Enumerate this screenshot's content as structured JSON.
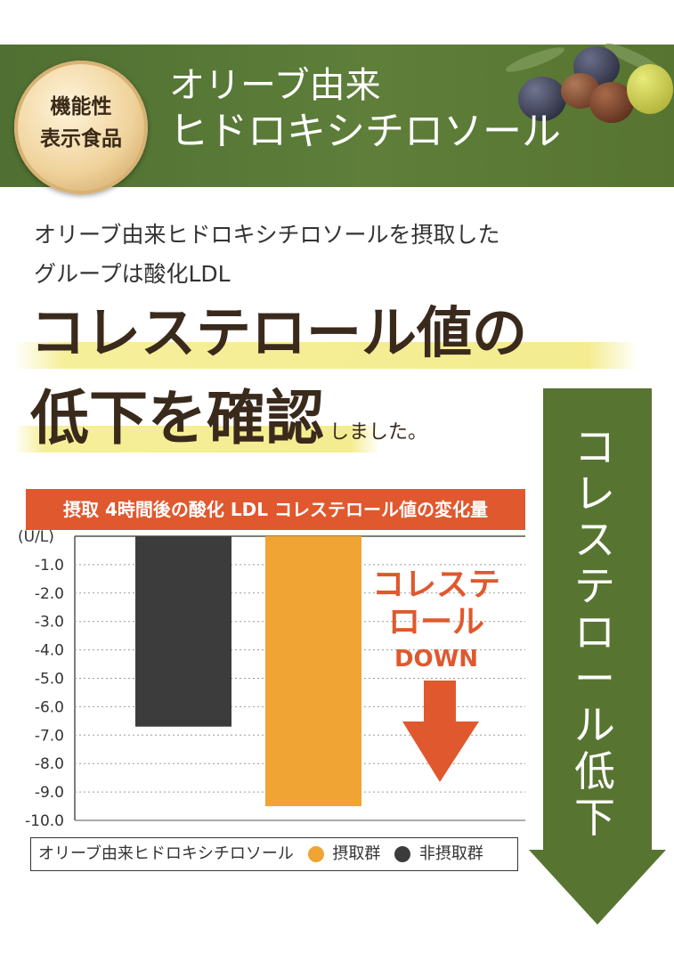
{
  "banner": {
    "badge_lines": [
      "機能性",
      "表示食品"
    ],
    "title_line1": "オリーブ由来",
    "title_line2": "ヒドロキシチロソール"
  },
  "intro_lines": [
    "オリーブ由来ヒドロキシチロソールを摂取した",
    "グループは酸化LDL"
  ],
  "headline": {
    "line1": "コレステロール値の",
    "line2": "低下を確認",
    "suffix": "しました。"
  },
  "callout": {
    "line1": "コレステ",
    "line2": "ロール",
    "line3": "DOWN"
  },
  "side_arrow_text": "コレステロール低下",
  "colors": {
    "green": "#577531",
    "orange": "#e0582e",
    "bar_intake": "#f0a434",
    "bar_nonintake": "#3c3c3c"
  },
  "chart_data": {
    "type": "bar",
    "title": "摂取 4時間後の酸化 LDL コレステロール値の変化量",
    "ylabel": "(U/L)",
    "ylim": [
      -10.0,
      0
    ],
    "yticks": [
      "-1.0",
      "-2.0",
      "-3.0",
      "-4.0",
      "-5.0",
      "-6.0",
      "-7.0",
      "-8.0",
      "-9.0",
      "-10.0"
    ],
    "grid": true,
    "legend": {
      "position": "bottom",
      "prefix": "オリーブ由来ヒドロキシチロソール",
      "entries": [
        "摂取群",
        "非摂取群"
      ]
    },
    "series": [
      {
        "name": "非摂取群",
        "value": -6.7,
        "color": "#3c3c3c"
      },
      {
        "name": "摂取群",
        "value": -9.5,
        "color": "#f0a434"
      }
    ]
  }
}
